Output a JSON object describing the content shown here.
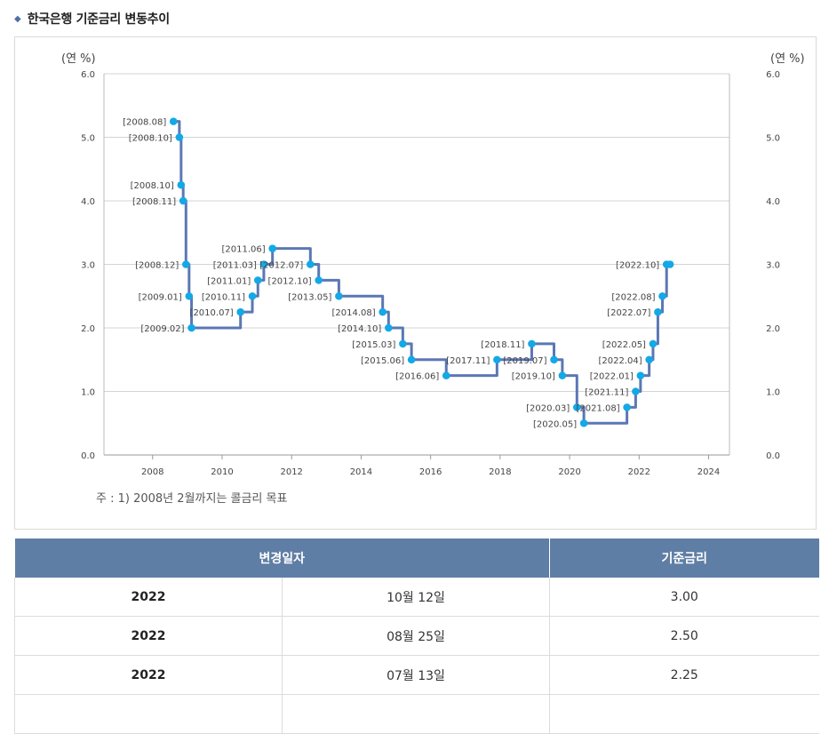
{
  "title": "한국은행 기준금리 변동추이",
  "note": "주 : 1) 2008년 2월까지는 콜금리 목표",
  "colors": {
    "line": "#5b77b4",
    "marker": "#14a8e6",
    "header": "#5f7ea5",
    "bullet": "#4f6fa6"
  },
  "chart_data": {
    "type": "line",
    "step": true,
    "y_unit_left": "(연 %)",
    "y_unit_right": "(연 %)",
    "ylim": [
      0.0,
      6.0
    ],
    "yticks": [
      "0.0",
      "1.0",
      "2.0",
      "3.0",
      "4.0",
      "5.0",
      "6.0"
    ],
    "xlim": [
      2007.0,
      2025.0
    ],
    "xticks": [
      "2008",
      "2010",
      "2012",
      "2014",
      "2016",
      "2018",
      "2020",
      "2022",
      "2024"
    ],
    "grid": "horizontal",
    "points": [
      {
        "label": "[2008.08]",
        "x": 2008.6,
        "y": 5.25
      },
      {
        "label": "[2008.10]",
        "x": 2008.77,
        "y": 5.0
      },
      {
        "label": "[2008.10]",
        "x": 2008.82,
        "y": 4.25
      },
      {
        "label": "[2008.11]",
        "x": 2008.88,
        "y": 4.0
      },
      {
        "label": "[2008.12]",
        "x": 2008.96,
        "y": 3.0
      },
      {
        "label": "[2009.01]",
        "x": 2009.05,
        "y": 2.5
      },
      {
        "label": "[2009.02]",
        "x": 2009.12,
        "y": 2.0
      },
      {
        "label": "[2010.07]",
        "x": 2010.53,
        "y": 2.25
      },
      {
        "label": "[2010.11]",
        "x": 2010.87,
        "y": 2.5
      },
      {
        "label": "[2011.01]",
        "x": 2011.03,
        "y": 2.75
      },
      {
        "label": "[2011.03]",
        "x": 2011.2,
        "y": 3.0
      },
      {
        "label": "[2011.06]",
        "x": 2011.45,
        "y": 3.25
      },
      {
        "label": "[2012.07]",
        "x": 2012.54,
        "y": 3.0
      },
      {
        "label": "[2012.10]",
        "x": 2012.78,
        "y": 2.75
      },
      {
        "label": "[2013.05]",
        "x": 2013.36,
        "y": 2.5
      },
      {
        "label": "[2014.08]",
        "x": 2014.62,
        "y": 2.25
      },
      {
        "label": "[2014.10]",
        "x": 2014.79,
        "y": 2.0
      },
      {
        "label": "[2015.03]",
        "x": 2015.2,
        "y": 1.75
      },
      {
        "label": "[2015.06]",
        "x": 2015.45,
        "y": 1.5
      },
      {
        "label": "[2016.06]",
        "x": 2016.45,
        "y": 1.25
      },
      {
        "label": "[2017.11]",
        "x": 2017.91,
        "y": 1.5
      },
      {
        "label": "[2018.11]",
        "x": 2018.91,
        "y": 1.75
      },
      {
        "label": "[2019.07]",
        "x": 2019.55,
        "y": 1.5
      },
      {
        "label": "[2019.10]",
        "x": 2019.79,
        "y": 1.25
      },
      {
        "label": "[2020.03]",
        "x": 2020.21,
        "y": 0.75
      },
      {
        "label": "[2020.05]",
        "x": 2020.41,
        "y": 0.5
      },
      {
        "label": "[2021.08]",
        "x": 2021.65,
        "y": 0.75
      },
      {
        "label": "[2021.11]",
        "x": 2021.9,
        "y": 1.0
      },
      {
        "label": "[2022.01]",
        "x": 2022.04,
        "y": 1.25
      },
      {
        "label": "[2022.04]",
        "x": 2022.29,
        "y": 1.5
      },
      {
        "label": "[2022.05]",
        "x": 2022.4,
        "y": 1.75
      },
      {
        "label": "[2022.07]",
        "x": 2022.54,
        "y": 2.25
      },
      {
        "label": "[2022.08]",
        "x": 2022.67,
        "y": 2.5
      },
      {
        "label": "[2022.10]",
        "x": 2022.79,
        "y": 3.0
      },
      {
        "label": "",
        "x": 2022.89,
        "y": 3.0
      }
    ]
  },
  "table": {
    "headers": [
      "변경일자",
      "기준금리"
    ],
    "rows": [
      {
        "year": "2022",
        "date": "10월 12일",
        "rate": "3.00"
      },
      {
        "year": "2022",
        "date": "08월 25일",
        "rate": "2.50"
      },
      {
        "year": "2022",
        "date": "07월 13일",
        "rate": "2.25"
      },
      {
        "year": "",
        "date": "",
        "rate": ""
      }
    ]
  }
}
